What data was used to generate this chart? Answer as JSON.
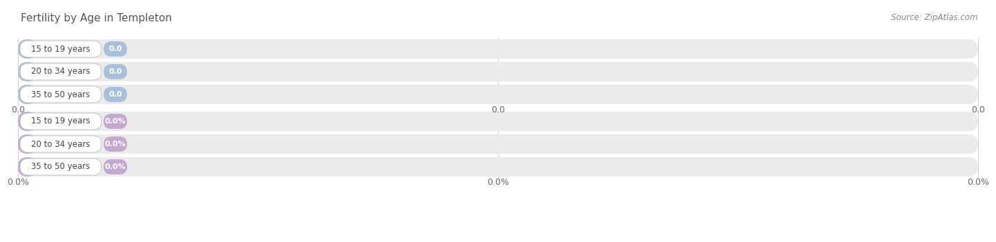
{
  "title": "Fertility by Age in Templeton",
  "source": "Source: ZipAtlas.com",
  "background_color": "#ffffff",
  "bar_bg_color": "#ebebeb",
  "top_section": {
    "categories": [
      "15 to 19 years",
      "20 to 34 years",
      "35 to 50 years"
    ],
    "values": [
      0.0,
      0.0,
      0.0
    ],
    "bar_color": "#a8c0d8",
    "label_bg_color": "#ffffff",
    "label_border_color": "#c8c8c8",
    "value_pill_color": "#a8c0d8",
    "tick_labels": [
      "0.0",
      "0.0",
      "0.0"
    ],
    "x_max": 1.0
  },
  "bottom_section": {
    "categories": [
      "15 to 19 years",
      "20 to 34 years",
      "35 to 50 years"
    ],
    "values": [
      0.0,
      0.0,
      0.0
    ],
    "bar_color": "#c4a8d0",
    "label_bg_color": "#ffffff",
    "label_border_color": "#c8c8c8",
    "value_pill_color": "#c4a8d0",
    "tick_labels": [
      "0.0%",
      "0.0%",
      "0.0%"
    ],
    "x_max": 1.0
  }
}
